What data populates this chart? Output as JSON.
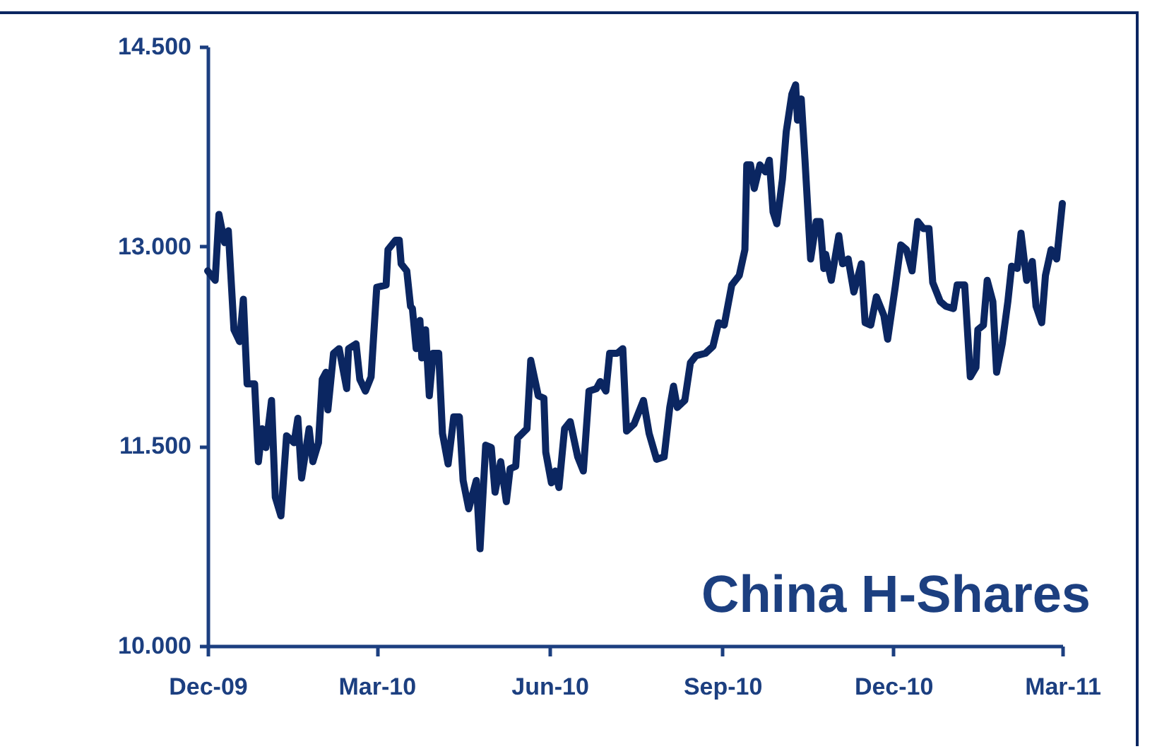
{
  "chart_data": {
    "type": "line",
    "title": "China H-Shares",
    "x": [
      "2009-12-01",
      "2009-12-05",
      "2009-12-07",
      "2009-12-10",
      "2009-12-12",
      "2009-12-15",
      "2009-12-18",
      "2009-12-20",
      "2009-12-22",
      "2009-12-26",
      "2009-12-28",
      "2009-12-30",
      "2010-01-01",
      "2010-01-04",
      "2010-01-06",
      "2010-01-09",
      "2010-01-12",
      "2010-01-16",
      "2010-01-18",
      "2010-01-20",
      "2010-01-24",
      "2010-01-26",
      "2010-01-29",
      "2010-01-31",
      "2010-02-02",
      "2010-02-03",
      "2010-02-06",
      "2010-02-09",
      "2010-02-13",
      "2010-02-14",
      "2010-02-18",
      "2010-02-20",
      "2010-02-23",
      "2010-02-26",
      "2010-03-01",
      "2010-03-06",
      "2010-03-07",
      "2010-03-11",
      "2010-03-13",
      "2010-03-14",
      "2010-03-17",
      "2010-03-19",
      "2010-03-20",
      "2010-03-22",
      "2010-03-24",
      "2010-03-25",
      "2010-03-27",
      "2010-03-29",
      "2010-03-31",
      "2010-04-03",
      "2010-04-05",
      "2010-04-08",
      "2010-04-11",
      "2010-04-14",
      "2010-04-16",
      "2010-04-19",
      "2010-04-23",
      "2010-04-25",
      "2010-04-28",
      "2010-05-01",
      "2010-05-03",
      "2010-05-06",
      "2010-05-09",
      "2010-05-11",
      "2010-05-14",
      "2010-05-15",
      "2010-05-20",
      "2010-05-22",
      "2010-05-26",
      "2010-05-29",
      "2010-05-30",
      "2010-06-02",
      "2010-06-04",
      "2010-06-06",
      "2010-06-09",
      "2010-06-12",
      "2010-06-16",
      "2010-06-19",
      "2010-06-22",
      "2010-06-26",
      "2010-06-28",
      "2010-07-01",
      "2010-07-03",
      "2010-07-07",
      "2010-07-10",
      "2010-07-12",
      "2010-07-16",
      "2010-07-21",
      "2010-07-24",
      "2010-07-28",
      "2010-08-01",
      "2010-08-04",
      "2010-08-06",
      "2010-08-08",
      "2010-08-12",
      "2010-08-15",
      "2010-08-18",
      "2010-08-23",
      "2010-08-27",
      "2010-08-30",
      "2010-09-02",
      "2010-09-06",
      "2010-09-10",
      "2010-09-13",
      "2010-09-14",
      "2010-09-16",
      "2010-09-18",
      "2010-09-21",
      "2010-09-24",
      "2010-09-26",
      "2010-09-28",
      "2010-09-30",
      "2010-10-03",
      "2010-10-05",
      "2010-10-08",
      "2010-10-10",
      "2010-10-11",
      "2010-10-13",
      "2010-10-15",
      "2010-10-18",
      "2010-10-21",
      "2010-10-23",
      "2010-10-25",
      "2010-10-26",
      "2010-10-29",
      "2010-11-02",
      "2010-11-04",
      "2010-11-07",
      "2010-11-10",
      "2010-11-14",
      "2010-11-16",
      "2010-11-19",
      "2010-11-22",
      "2010-11-26",
      "2010-11-28",
      "2010-12-02",
      "2010-12-05",
      "2010-12-08",
      "2010-12-11",
      "2010-12-14",
      "2010-12-17",
      "2010-12-20",
      "2010-12-22",
      "2010-12-26",
      "2010-12-29",
      "2011-01-02",
      "2011-01-04",
      "2011-01-08",
      "2011-01-11",
      "2011-01-14",
      "2011-01-15",
      "2011-01-18",
      "2011-01-20",
      "2011-01-23",
      "2011-01-25",
      "2011-01-28",
      "2011-01-31",
      "2011-02-02",
      "2011-02-05",
      "2011-02-07",
      "2011-02-10",
      "2011-02-13",
      "2011-02-15",
      "2011-02-18",
      "2011-02-20",
      "2011-02-23",
      "2011-02-26",
      "2011-03-01"
    ],
    "series": [
      {
        "color": "#0b2661",
        "values": [
          12816,
          12745,
          13240,
          13028,
          13117,
          12374,
          12285,
          12603,
          11967,
          11967,
          11383,
          11631,
          11489,
          11843,
          11117,
          10976,
          11578,
          11525,
          11709,
          11260,
          11631,
          11383,
          11525,
          12002,
          12055,
          11772,
          12197,
          12232,
          11932,
          12232,
          12268,
          12002,
          11913,
          12020,
          12692,
          12710,
          12975,
          13046,
          13046,
          12869,
          12816,
          12550,
          12533,
          12232,
          12444,
          12162,
          12374,
          11878,
          12197,
          12197,
          11595,
          11366,
          11719,
          11719,
          11242,
          11029,
          11242,
          10729,
          11507,
          11489,
          11154,
          11383,
          11083,
          11330,
          11348,
          11560,
          11631,
          12144,
          11878,
          11860,
          11454,
          11224,
          11313,
          11189,
          11631,
          11684,
          11419,
          11313,
          11913,
          11932,
          11985,
          11913,
          12197,
          12197,
          12232,
          11613,
          11666,
          11843,
          11595,
          11401,
          11419,
          11790,
          11950,
          11790,
          11843,
          12126,
          12179,
          12197,
          12250,
          12427,
          12409,
          12710,
          12781,
          12975,
          13612,
          13612,
          13435,
          13612,
          13559,
          13647,
          13258,
          13170,
          13506,
          13860,
          14142,
          14213,
          13948,
          14107,
          13647,
          12905,
          13187,
          13187,
          12834,
          12940,
          12745,
          13081,
          12869,
          12905,
          12657,
          12869,
          12427,
          12409,
          12621,
          12480,
          12303,
          12692,
          13011,
          12975,
          12816,
          13187,
          13134,
          13134,
          12728,
          12586,
          12550,
          12533,
          12710,
          12710,
          12020,
          12091,
          12374,
          12409,
          12745,
          12586,
          12055,
          12268,
          12586,
          12851,
          12834,
          13099,
          12745,
          12887,
          12550,
          12427,
          12781,
          12975,
          12905,
          13322
        ]
      }
    ],
    "xlim": [
      "2009-12-01",
      "2011-03-01"
    ],
    "xticks": [
      {
        "value": "2009-12-01",
        "label": "Dec-09"
      },
      {
        "value": "2010-03-01",
        "label": "Mar-10"
      },
      {
        "value": "2010-06-01",
        "label": "Jun-10"
      },
      {
        "value": "2010-09-01",
        "label": "Sep-10"
      },
      {
        "value": "2010-12-01",
        "label": "Dec-10"
      },
      {
        "value": "2011-03-01",
        "label": "Mar-11"
      }
    ],
    "ylim": [
      10000,
      14500
    ],
    "yticks": [
      {
        "value": 10000,
        "label": "10.000"
      },
      {
        "value": 11500,
        "label": "11.500"
      },
      {
        "value": 13000,
        "label": "13.000"
      },
      {
        "value": 14500,
        "label": "14.500"
      }
    ],
    "grid": false,
    "marker": "none",
    "line_style": "solid"
  }
}
